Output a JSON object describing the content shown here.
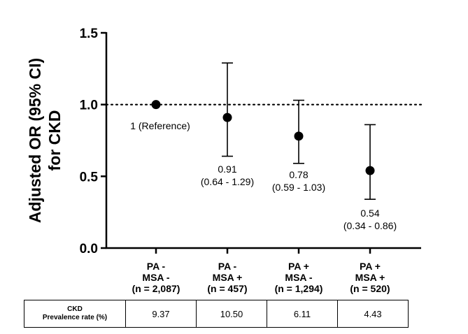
{
  "chart_data": {
    "type": "scatter",
    "subtype": "point-estimate-with-error-bars",
    "title": "",
    "ylabel_lines": [
      "Adjusted OR (95% CI)",
      "for CKD"
    ],
    "ylim": [
      0,
      1.5
    ],
    "yticks": [
      "0.0",
      "0.5",
      "1.0",
      "1.5"
    ],
    "reference_line": {
      "y": 1.0,
      "style": "dotted"
    },
    "categories": [
      {
        "lines": [
          "PA -",
          "MSA -",
          "(n = 2,087)"
        ]
      },
      {
        "lines": [
          "PA -",
          "MSA +",
          "(n = 457)"
        ]
      },
      {
        "lines": [
          "PA +",
          "MSA -",
          "(n = 1,294)"
        ]
      },
      {
        "lines": [
          "PA +",
          "MSA +",
          "(n = 520)"
        ]
      }
    ],
    "points": [
      {
        "or": 1.0,
        "ci_low": null,
        "ci_high": null,
        "label_lines": [
          "1 (Reference)"
        ]
      },
      {
        "or": 0.91,
        "ci_low": 0.64,
        "ci_high": 1.29,
        "label_lines": [
          "0.91",
          "(0.64 - 1.29)"
        ]
      },
      {
        "or": 0.78,
        "ci_low": 0.59,
        "ci_high": 1.03,
        "label_lines": [
          "0.78",
          "(0.59 - 1.03)"
        ]
      },
      {
        "or": 0.54,
        "ci_low": 0.34,
        "ci_high": 0.86,
        "label_lines": [
          "0.54",
          "(0.34 - 0.86)"
        ]
      }
    ]
  },
  "prevalence_table": {
    "row_label_lines": [
      "CKD",
      "Prevalence rate (%)"
    ],
    "values": [
      "9.37",
      "10.50",
      "6.11",
      "4.43"
    ]
  }
}
